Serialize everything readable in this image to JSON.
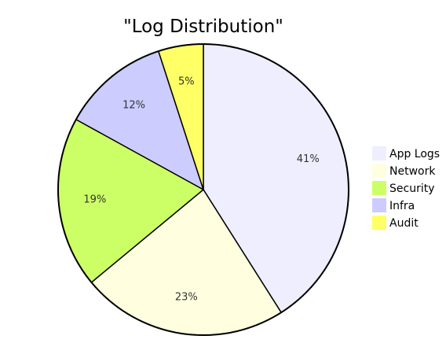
{
  "chart_data": {
    "type": "pie",
    "title": "\"Log Distribution\"",
    "categories": [
      "App Logs",
      "Network",
      "Security",
      "Infra",
      "Audit"
    ],
    "values": [
      41,
      23,
      19,
      12,
      5
    ],
    "slice_labels": [
      "41%",
      "23%",
      "19%",
      "12%",
      "5%"
    ],
    "colors": [
      "#eeeeff",
      "#ffffe0",
      "#ccff66",
      "#ccccff",
      "#ffff66"
    ],
    "legend_placement": "right"
  }
}
